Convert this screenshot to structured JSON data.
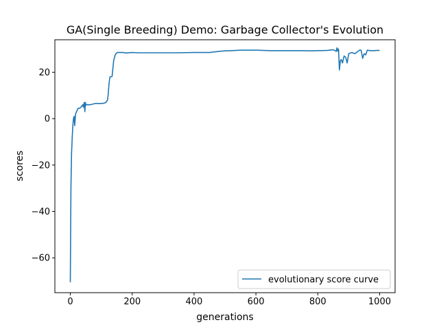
{
  "chart_data": {
    "type": "line",
    "title": "GA(Single Breeding) Demo: Garbage Collector's Evolution",
    "xlabel": "generations",
    "ylabel": "scores",
    "xlim": [
      -50,
      1050
    ],
    "ylim": [
      -75,
      34
    ],
    "xticks": [
      0,
      200,
      400,
      600,
      800,
      1000
    ],
    "xtick_labels": [
      "0",
      "200",
      "400",
      "600",
      "800",
      "1000"
    ],
    "yticks": [
      -60,
      -40,
      -20,
      0,
      20
    ],
    "ytick_labels": [
      "−60",
      "−40",
      "−20",
      "0",
      "20"
    ],
    "grid": false,
    "legend_position": "lower-right",
    "color": "#1f77b4",
    "series": [
      {
        "name": "evolutionary score curve",
        "x": [
          0,
          2,
          4,
          6,
          8,
          10,
          12,
          14,
          17,
          20,
          25,
          30,
          35,
          40,
          42,
          45,
          47,
          49,
          50,
          52,
          55,
          60,
          65,
          70,
          80,
          90,
          100,
          110,
          115,
          120,
          122,
          125,
          128,
          130,
          135,
          140,
          145,
          148,
          150,
          152,
          155,
          160,
          165,
          170,
          180,
          200,
          220,
          250,
          300,
          350,
          400,
          450,
          480,
          500,
          520,
          550,
          600,
          650,
          700,
          750,
          780,
          800,
          830,
          850,
          860,
          862,
          865,
          867,
          870,
          873,
          876,
          880,
          885,
          890,
          895,
          900,
          910,
          920,
          930,
          935,
          940,
          945,
          950,
          955,
          960,
          970,
          980,
          990,
          1000
        ],
        "y": [
          -70.5,
          -30,
          -15,
          -8,
          -3,
          0,
          1,
          -3,
          2,
          3,
          4.5,
          4.5,
          5,
          6,
          5,
          7,
          3,
          7,
          5.8,
          6,
          6,
          6,
          6,
          6.2,
          6.5,
          6.5,
          6.5,
          6.7,
          7,
          8,
          10,
          15,
          18,
          18,
          18.2,
          25,
          27.5,
          28,
          28.3,
          28.5,
          28.5,
          28.5,
          28.5,
          28.5,
          28.3,
          28.5,
          28.4,
          28.4,
          28.4,
          28.4,
          28.5,
          28.5,
          29,
          29.2,
          29.3,
          29.5,
          29.5,
          29.3,
          29.3,
          29.3,
          29.2,
          29.3,
          29.4,
          29.7,
          29,
          30.5,
          29,
          30,
          21,
          25,
          25.5,
          24,
          27,
          26.5,
          24,
          28,
          28.5,
          28,
          29,
          29.5,
          29.5,
          26,
          28,
          27.5,
          29.5,
          29.3,
          29.3,
          29.4,
          29.4
        ]
      }
    ]
  }
}
